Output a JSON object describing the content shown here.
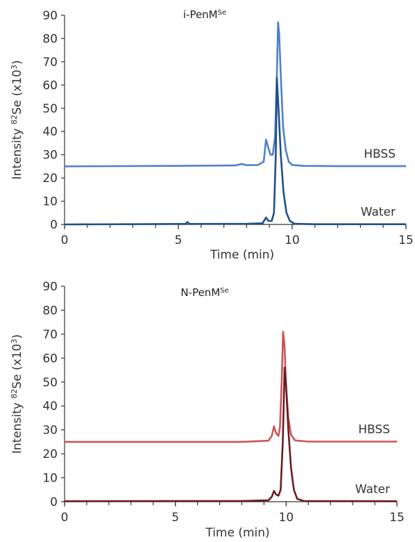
{
  "chart_data": [
    {
      "type": "line",
      "title": "i-PenM",
      "title_sup": "Se",
      "xlabel": "Time (min)",
      "ylabel": "Intensity",
      "ylabel_sup1": "82",
      "ylabel_mid": "Se (x10",
      "ylabel_sup2": "3",
      "ylabel_end": ")",
      "xlim": [
        0,
        15
      ],
      "ylim": [
        0,
        90
      ],
      "xticks": [
        "0",
        "5",
        "10",
        "15"
      ],
      "yticks": [
        "0",
        "10",
        "20",
        "30",
        "40",
        "50",
        "60",
        "70",
        "80",
        "90"
      ],
      "series": [
        {
          "name": "HBSS",
          "color": "#4f81c7",
          "points": [
            [
              0,
              25
            ],
            [
              5,
              25.2
            ],
            [
              7.5,
              25.4
            ],
            [
              7.8,
              26
            ],
            [
              8.0,
              25.5
            ],
            [
              8.5,
              25.6
            ],
            [
              8.75,
              27
            ],
            [
              8.85,
              36.5
            ],
            [
              8.95,
              33
            ],
            [
              9.05,
              30
            ],
            [
              9.15,
              30
            ],
            [
              9.25,
              38
            ],
            [
              9.33,
              65
            ],
            [
              9.38,
              87
            ],
            [
              9.43,
              82
            ],
            [
              9.5,
              64
            ],
            [
              9.6,
              42
            ],
            [
              9.72,
              32
            ],
            [
              9.85,
              27
            ],
            [
              10.0,
              25.6
            ],
            [
              10.5,
              25.2
            ],
            [
              12,
              25.1
            ],
            [
              15,
              25.1
            ]
          ]
        },
        {
          "name": "Water",
          "color": "#1f4e8c",
          "points": [
            [
              0,
              0
            ],
            [
              5.3,
              0.2
            ],
            [
              5.4,
              1.0
            ],
            [
              5.5,
              0.2
            ],
            [
              8.0,
              0.3
            ],
            [
              8.7,
              0.5
            ],
            [
              8.85,
              3
            ],
            [
              8.95,
              1.5
            ],
            [
              9.1,
              1.5
            ],
            [
              9.2,
              5
            ],
            [
              9.28,
              30
            ],
            [
              9.33,
              63
            ],
            [
              9.4,
              50
            ],
            [
              9.5,
              30
            ],
            [
              9.62,
              14
            ],
            [
              9.75,
              5
            ],
            [
              9.9,
              1.5
            ],
            [
              10.1,
              0.3
            ],
            [
              11,
              0.1
            ],
            [
              15,
              0.1
            ]
          ]
        }
      ]
    },
    {
      "type": "line",
      "title": "N-PenM",
      "title_sup": "Se",
      "xlabel": "Time (min)",
      "ylabel": "Intensity",
      "ylabel_sup1": "82",
      "ylabel_mid": "Se (x10",
      "ylabel_sup2": "3",
      "ylabel_end": ")",
      "xlim": [
        0,
        15
      ],
      "ylim": [
        0,
        90
      ],
      "xticks": [
        "0",
        "5",
        "10",
        "15"
      ],
      "yticks": [
        "0",
        "10",
        "20",
        "30",
        "40",
        "50",
        "60",
        "70",
        "80",
        "90"
      ],
      "series": [
        {
          "name": "HBSS",
          "color": "#cc5555",
          "points": [
            [
              0,
              25
            ],
            [
              8,
              25
            ],
            [
              9.2,
              25.5
            ],
            [
              9.35,
              27.5
            ],
            [
              9.45,
              31.5
            ],
            [
              9.55,
              28.5
            ],
            [
              9.65,
              27.5
            ],
            [
              9.72,
              31
            ],
            [
              9.8,
              50
            ],
            [
              9.86,
              71
            ],
            [
              9.92,
              66
            ],
            [
              10.0,
              48
            ],
            [
              10.1,
              35
            ],
            [
              10.22,
              28
            ],
            [
              10.4,
              25.6
            ],
            [
              11,
              25.1
            ],
            [
              15,
              25.1
            ]
          ]
        },
        {
          "name": "Water",
          "color": "#6b1a22",
          "points": [
            [
              0,
              0.2
            ],
            [
              8,
              0.3
            ],
            [
              9.2,
              0.6
            ],
            [
              9.35,
              2
            ],
            [
              9.45,
              4.5
            ],
            [
              9.55,
              3
            ],
            [
              9.65,
              2.5
            ],
            [
              9.75,
              5
            ],
            [
              9.85,
              25
            ],
            [
              9.93,
              56
            ],
            [
              10.0,
              48
            ],
            [
              10.1,
              30
            ],
            [
              10.22,
              14
            ],
            [
              10.35,
              5
            ],
            [
              10.5,
              1.2
            ],
            [
              10.8,
              0.3
            ],
            [
              15,
              0.2
            ]
          ]
        }
      ]
    }
  ]
}
